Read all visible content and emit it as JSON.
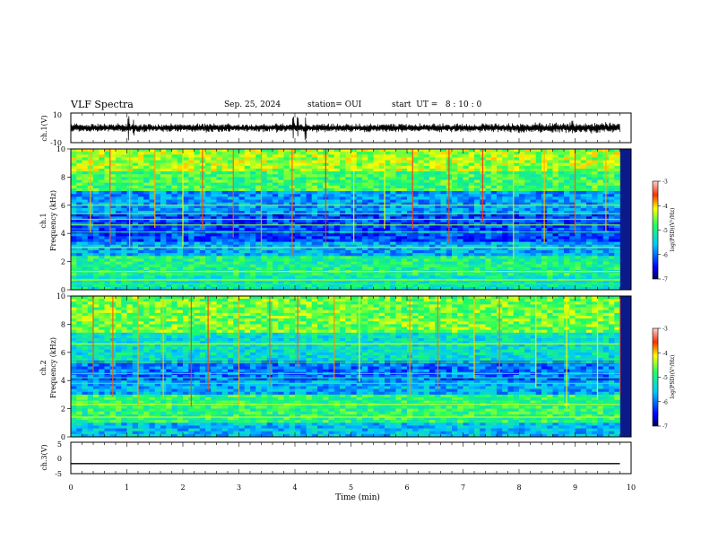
{
  "header": {
    "title": "VLF Spectra",
    "date": "Sep. 25, 2024",
    "station": "station= OUI",
    "start": "start  UT =   8 : 10 : 0"
  },
  "chart_data": [
    {
      "type": "line",
      "panel": "waveform-ch1",
      "ylabel": "ch.1(V)",
      "ylim": [
        -10,
        10
      ],
      "yticks": [
        "10",
        "-10"
      ],
      "xlim": [
        0,
        10
      ],
      "series_color": "#000000",
      "baseline": 0,
      "amplitude_typical": 2.2,
      "amplitude_bursts": [
        {
          "x": 1.03,
          "amp": 9
        },
        {
          "x": 1.12,
          "amp": 6
        },
        {
          "x": 3.97,
          "amp": 9
        },
        {
          "x": 4.05,
          "amp": 9
        },
        {
          "x": 4.19,
          "amp": 9
        },
        {
          "x": 8.95,
          "amp": 5
        }
      ]
    },
    {
      "type": "heatmap",
      "panel": "spectrogram-ch1",
      "ylabel": "Frequency (kHz)",
      "channel_label": "ch.1",
      "xlim": [
        0,
        10
      ],
      "ylim": [
        0,
        10
      ],
      "yticks": [
        "0",
        "2",
        "4",
        "6",
        "8",
        "10"
      ],
      "data_end_min": 9.8,
      "colorbar": {
        "label": "log(PSD)(V²/Hz)",
        "range": [
          -7,
          -3
        ],
        "ticks": [
          "-3",
          "-4",
          "-5",
          "-6",
          "-7"
        ]
      },
      "bands": [
        {
          "from": 0,
          "to": 1.0,
          "level": -5.2
        },
        {
          "from": 1.0,
          "to": 2.5,
          "level": -5.0
        },
        {
          "from": 2.5,
          "to": 3.5,
          "level": -5.7
        },
        {
          "from": 3.5,
          "to": 5.5,
          "level": -6.2
        },
        {
          "from": 5.5,
          "to": 7.0,
          "level": -5.8
        },
        {
          "from": 7.0,
          "to": 8.5,
          "level": -4.8
        },
        {
          "from": 8.5,
          "to": 10.0,
          "level": -4.4
        }
      ],
      "lines_khz": [
        0.4,
        0.7,
        1.3,
        1.7,
        3.0,
        4.1,
        4.6,
        5.0,
        5.4,
        6.0
      ],
      "spikes_min": [
        0.35,
        0.7,
        1.05,
        1.5,
        2.0,
        2.35,
        2.9,
        3.4,
        3.95,
        4.55,
        5.05,
        5.6,
        6.1,
        6.75,
        7.35,
        7.9,
        8.45,
        9.0,
        9.55
      ]
    },
    {
      "type": "heatmap",
      "panel": "spectrogram-ch2",
      "ylabel": "Frequency (kHz)",
      "channel_label": "ch.2",
      "xlim": [
        0,
        10
      ],
      "ylim": [
        0,
        10
      ],
      "yticks": [
        "0",
        "2",
        "4",
        "6",
        "8",
        "10"
      ],
      "data_end_min": 9.8,
      "colorbar": {
        "label": "log(PSD)(V²/Hz)",
        "range": [
          -7,
          -3
        ],
        "ticks": [
          "-3",
          "-4",
          "-5",
          "-6",
          "-7"
        ]
      },
      "bands": [
        {
          "from": 0,
          "to": 1.0,
          "level": -5.6
        },
        {
          "from": 1.0,
          "to": 3.0,
          "level": -4.9
        },
        {
          "from": 3.0,
          "to": 4.0,
          "level": -5.7
        },
        {
          "from": 4.0,
          "to": 5.5,
          "level": -6.0
        },
        {
          "from": 5.5,
          "to": 7.5,
          "level": -5.3
        },
        {
          "from": 7.5,
          "to": 10.0,
          "level": -4.6
        }
      ],
      "lines_khz": [
        1.4,
        2.3,
        2.6,
        3.8,
        4.2,
        4.5,
        5.3,
        6.6
      ],
      "spikes_min": [
        0.4,
        0.75,
        1.2,
        1.65,
        2.15,
        2.45,
        3.0,
        3.55,
        4.05,
        4.7,
        5.15,
        6.05,
        6.55,
        7.2,
        7.65,
        8.3,
        8.85,
        9.4,
        9.8
      ]
    },
    {
      "type": "line",
      "panel": "waveform-ch3",
      "ylabel": "ch.3(V)",
      "ylim": [
        -5,
        5
      ],
      "yticks": [
        "5",
        "0",
        "-5"
      ],
      "xlim": [
        0,
        10
      ],
      "series_color": "#000000",
      "x": [
        0,
        9.8
      ],
      "y": [
        -1.8,
        -1.8
      ],
      "xlabel": "Time (min)",
      "xticks": [
        "0",
        "1",
        "2",
        "3",
        "4",
        "5",
        "6",
        "7",
        "8",
        "9",
        "10"
      ]
    }
  ]
}
